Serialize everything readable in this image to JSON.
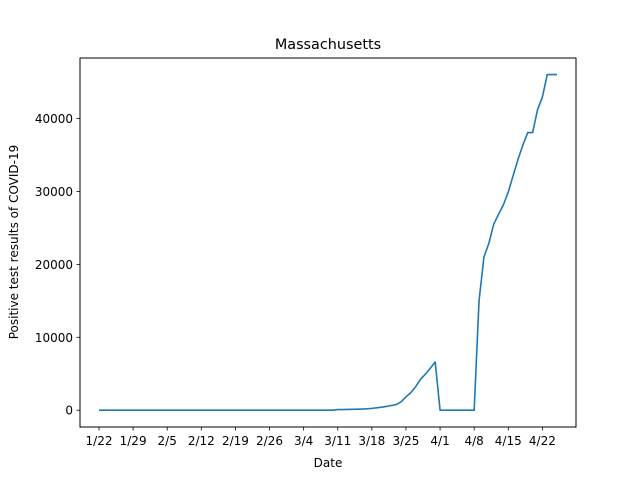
{
  "chart_data": {
    "type": "line",
    "title": "Massachusetts",
    "xlabel": "Date",
    "ylabel": "Positive test results of COVID-19",
    "x_start_date": "2020-01-22",
    "x_tick_labels": [
      "1/22",
      "1/29",
      "2/5",
      "2/12",
      "2/19",
      "2/26",
      "3/4",
      "3/11",
      "3/18",
      "3/25",
      "4/1",
      "4/8",
      "4/15",
      "4/22"
    ],
    "y_tick_labels": [
      "0",
      "10000",
      "20000",
      "30000",
      "40000"
    ],
    "y_ticks": [
      0,
      10000,
      20000,
      30000,
      40000
    ],
    "ylim": [
      -2300,
      48300
    ],
    "grid": false,
    "legend": "none",
    "line_color": "#1f77b4",
    "series": [
      {
        "x": [
          "2020-01-22",
          "2020-01-23",
          "2020-01-24",
          "2020-01-25",
          "2020-01-26",
          "2020-01-27",
          "2020-01-28",
          "2020-01-29",
          "2020-01-30",
          "2020-01-31",
          "2020-02-01",
          "2020-02-02",
          "2020-02-03",
          "2020-02-04",
          "2020-02-05",
          "2020-02-06",
          "2020-02-07",
          "2020-02-08",
          "2020-02-09",
          "2020-02-10",
          "2020-02-11",
          "2020-02-12",
          "2020-02-13",
          "2020-02-14",
          "2020-02-15",
          "2020-02-16",
          "2020-02-17",
          "2020-02-18",
          "2020-02-19",
          "2020-02-20",
          "2020-02-21",
          "2020-02-22",
          "2020-02-23",
          "2020-02-24",
          "2020-02-25",
          "2020-02-26",
          "2020-02-27",
          "2020-02-28",
          "2020-02-29",
          "2020-03-01",
          "2020-03-02",
          "2020-03-03",
          "2020-03-04",
          "2020-03-05",
          "2020-03-06",
          "2020-03-07",
          "2020-03-08",
          "2020-03-09",
          "2020-03-10",
          "2020-03-11",
          "2020-03-12",
          "2020-03-13",
          "2020-03-14",
          "2020-03-15",
          "2020-03-16",
          "2020-03-17",
          "2020-03-18",
          "2020-03-19",
          "2020-03-20",
          "2020-03-21",
          "2020-03-22",
          "2020-03-23",
          "2020-03-24",
          "2020-03-25",
          "2020-03-26",
          "2020-03-27",
          "2020-03-28",
          "2020-03-29",
          "2020-03-30",
          "2020-03-31",
          "2020-04-01",
          "2020-04-02",
          "2020-04-03",
          "2020-04-04",
          "2020-04-05",
          "2020-04-06",
          "2020-04-07",
          "2020-04-08",
          "2020-04-09",
          "2020-04-10",
          "2020-04-11",
          "2020-04-12",
          "2020-04-13",
          "2020-04-14",
          "2020-04-15",
          "2020-04-16",
          "2020-04-17",
          "2020-04-18",
          "2020-04-19",
          "2020-04-20",
          "2020-04-21",
          "2020-04-22",
          "2020-04-23",
          "2020-04-24",
          "2020-04-25"
        ],
        "values": [
          0,
          0,
          0,
          0,
          0,
          0,
          0,
          0,
          0,
          0,
          0,
          0,
          0,
          0,
          0,
          0,
          0,
          0,
          0,
          0,
          0,
          0,
          0,
          0,
          0,
          0,
          0,
          0,
          0,
          0,
          0,
          0,
          0,
          0,
          0,
          0,
          0,
          0,
          0,
          0,
          0,
          0,
          0,
          0,
          0,
          0,
          0,
          0,
          0,
          92,
          95,
          108,
          123,
          138,
          164,
          197,
          256,
          328,
          413,
          525,
          646,
          777,
          1159,
          1838,
          2417,
          3240,
          4257,
          4955,
          5752,
          6620,
          0,
          0,
          0,
          0,
          0,
          0,
          0,
          0,
          15000,
          21000,
          22860,
          25475,
          26867,
          28163,
          29918,
          32181,
          34402,
          36372,
          38077,
          38077,
          41199,
          42944,
          46023,
          46023,
          46023
        ]
      }
    ]
  }
}
